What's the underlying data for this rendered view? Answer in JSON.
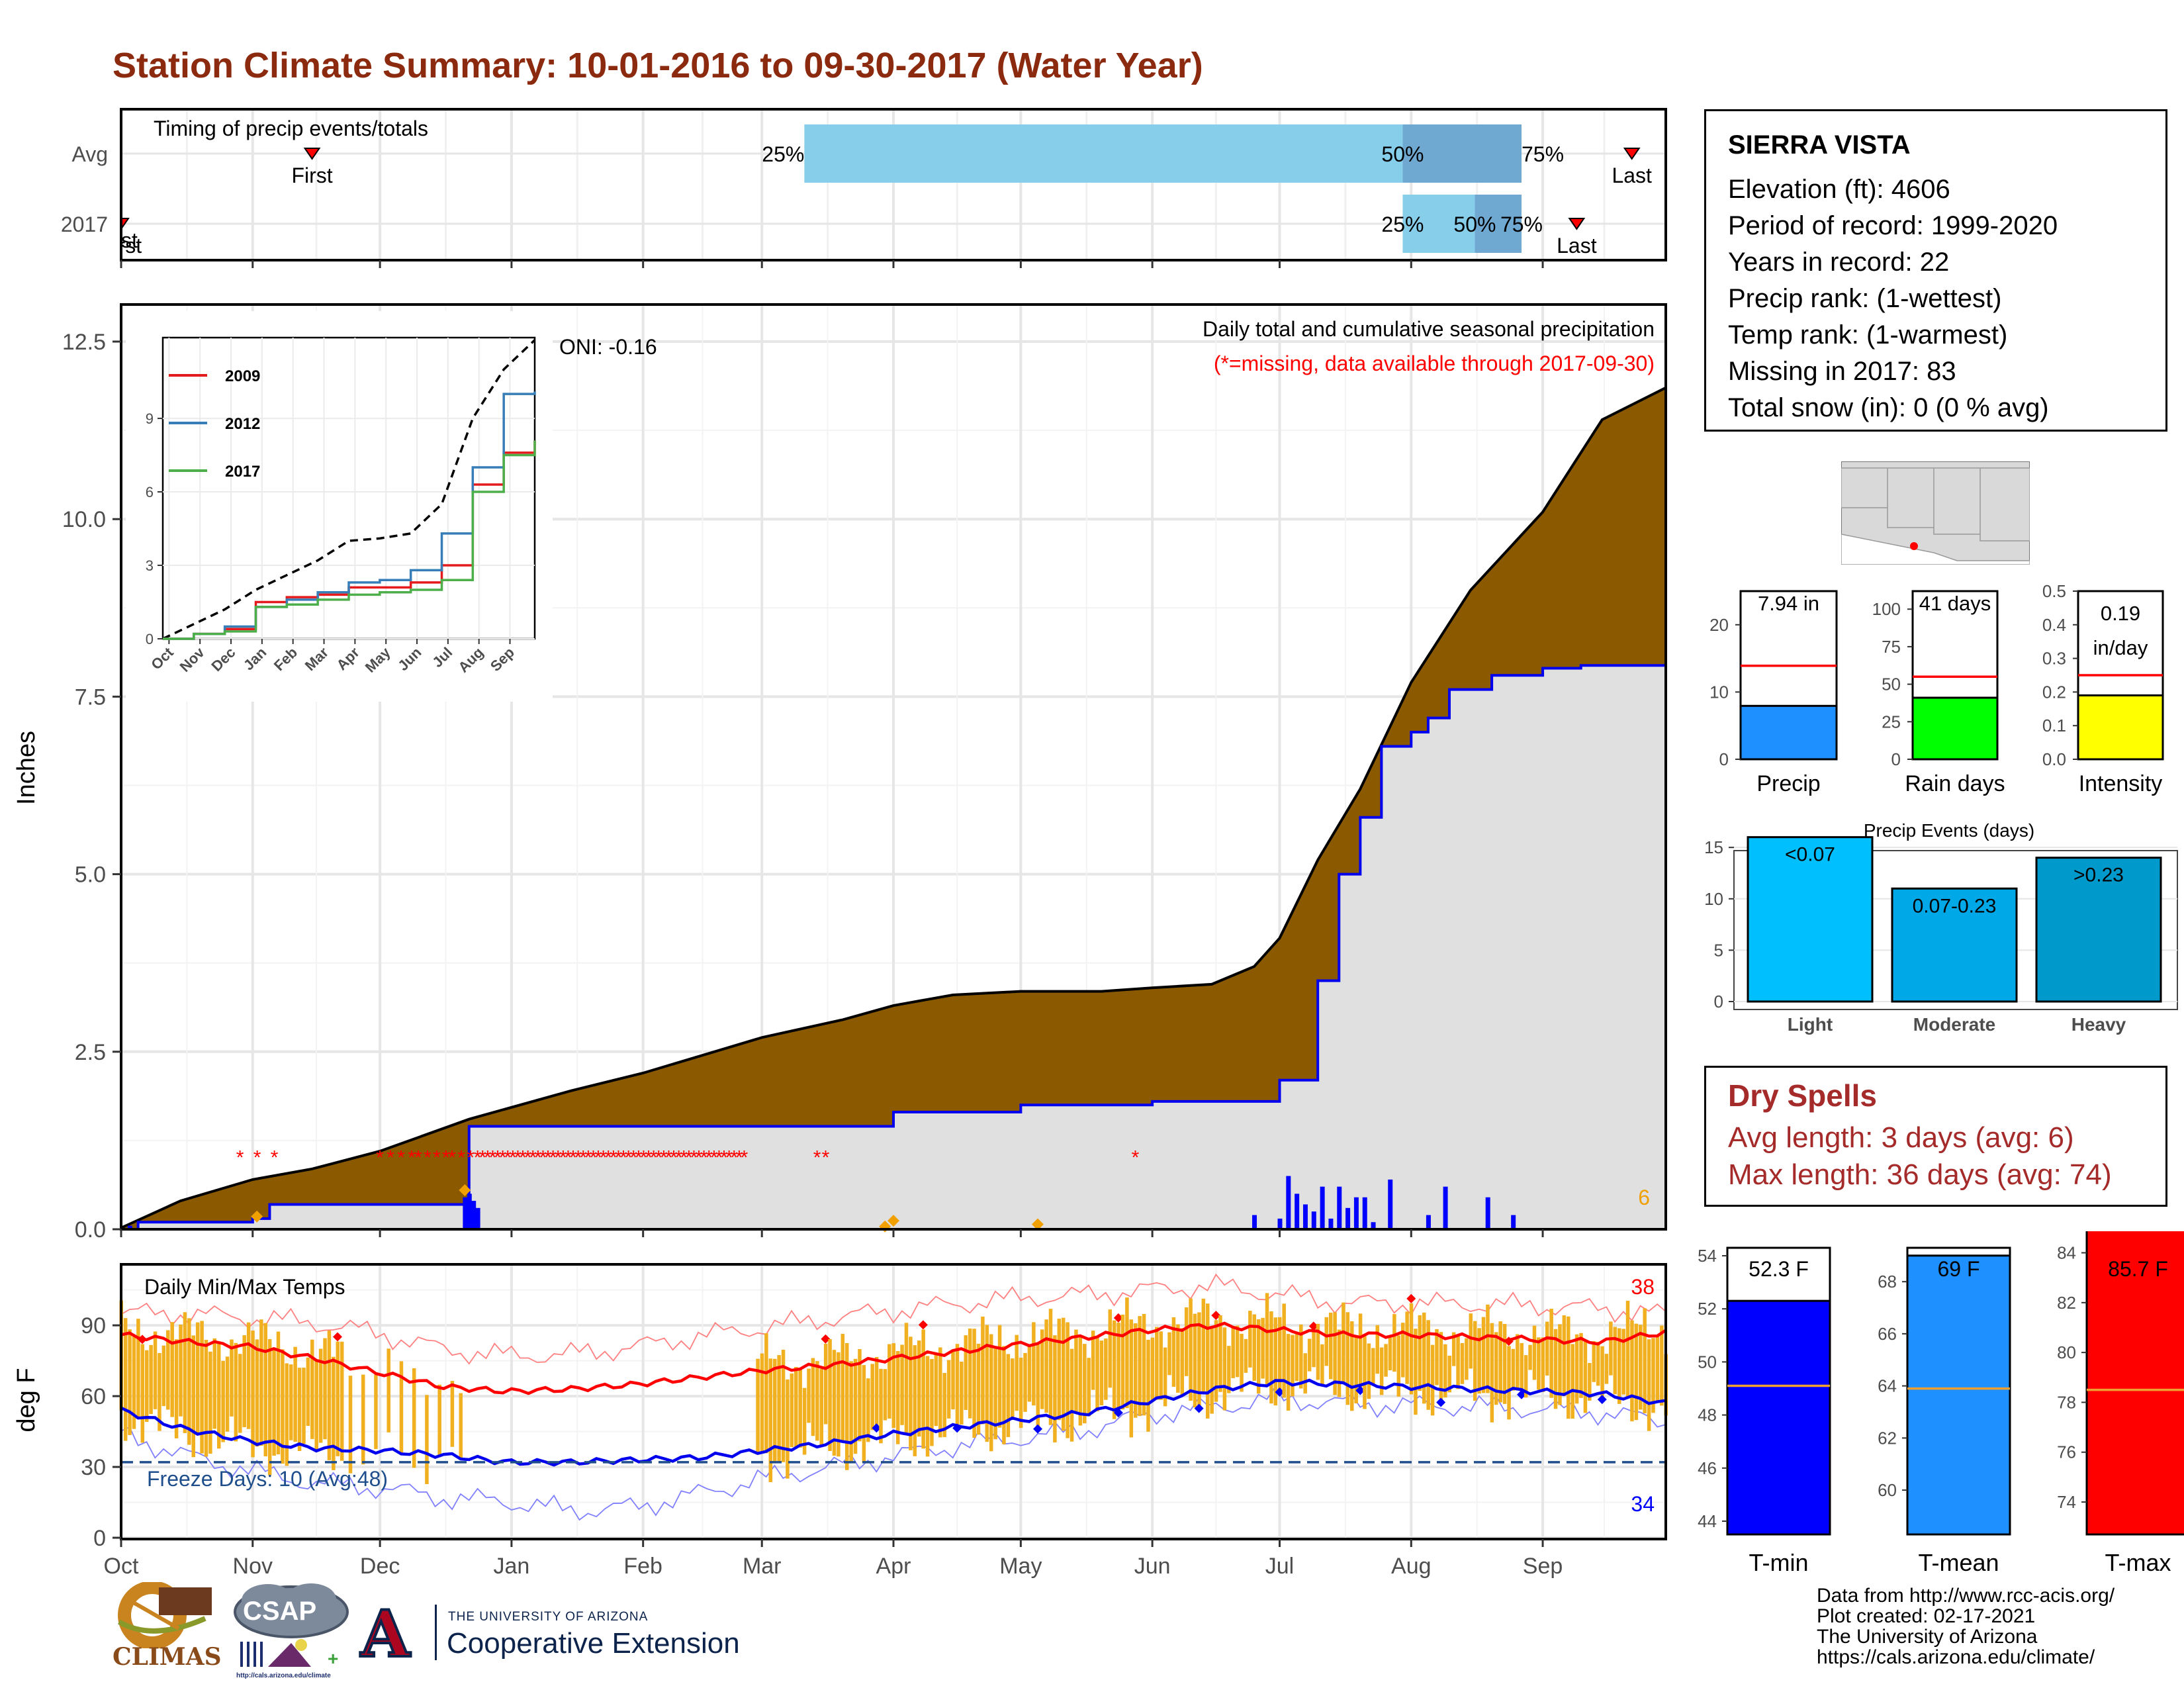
{
  "title": "Station Climate Summary: 10-01-2016 to 09-30-2017 (Water Year)",
  "station": {
    "name": "SIERRA VISTA",
    "lines": [
      "Elevation (ft): 4606",
      "Period of record: 1999-2020",
      "Years in record: 22",
      "Precip rank:  (1-wettest)",
      "Temp rank:  (1-warmest)",
      "Missing in 2017: 83",
      "Total snow (in): 0 (0 % avg)"
    ]
  },
  "timing": {
    "label": "Timing of precip events/totals",
    "rows": [
      {
        "name": "Avg",
        "first_label": "First",
        "first_day": 45,
        "last_label": "Last",
        "last_day": 356,
        "q25_day": 161,
        "q50_day": 302,
        "q75_day": 330,
        "q25_label": "25%",
        "q50_label": "50%",
        "q75_label": "75%"
      },
      {
        "name": "2017",
        "first_label": "First",
        "first_day": 0,
        "last_label": "Last",
        "last_day": 343,
        "q25_day": 302,
        "q50_day": 319,
        "q75_day": 330,
        "q25_label": "25%",
        "q50_label": "50%",
        "q75_label": "75%"
      }
    ]
  },
  "precip_panel": {
    "title": "Daily total and cumulative seasonal precipitation",
    "note": "(*=missing, data available through 2017-09-30)",
    "oni": "ONI: -0.16",
    "ylabel": "Inches",
    "yticks": [
      "0.0",
      "2.5",
      "5.0",
      "7.5",
      "10.0",
      "12.5"
    ],
    "corner_count": "6"
  },
  "inset": {
    "yticks": [
      "0",
      "3",
      "6",
      "9"
    ],
    "xticks": [
      "Oct",
      "Nov",
      "Dec",
      "Jan",
      "Feb",
      "Mar",
      "Apr",
      "May",
      "Jun",
      "Jul",
      "Aug",
      "Sep"
    ],
    "legend": [
      "2009",
      "2012",
      "2017"
    ],
    "colors": {
      "2009": "#e41a1c",
      "2012": "#377eb8",
      "2017": "#4daf4a"
    }
  },
  "temp_panel": {
    "title": "Daily Min/Max Temps",
    "ylabel": "deg F",
    "yticks": [
      "0",
      "30",
      "60",
      "90"
    ],
    "freeze": "Freeze Days: 10 (Avg:48)",
    "count_hot": "38",
    "count_cold": "34"
  },
  "months": [
    "Oct",
    "Nov",
    "Dec",
    "Jan",
    "Feb",
    "Mar",
    "Apr",
    "May",
    "Jun",
    "Jul",
    "Aug",
    "Sep"
  ],
  "precip_gauges": [
    {
      "name": "Precip",
      "value_label": "7.94 in",
      "ticks": [
        "0",
        "10",
        "20"
      ],
      "color": "#1e90ff"
    },
    {
      "name": "Rain days",
      "value_label": "41 days",
      "ticks": [
        "0",
        "25",
        "50",
        "75",
        "100"
      ],
      "color": "#00ff00"
    },
    {
      "name": "Intensity",
      "value_label": "0.19\nin/day",
      "ticks": [
        "0.0",
        "0.1",
        "0.2",
        "0.3",
        "0.4",
        "0.5"
      ],
      "color": "#ffff00"
    }
  ],
  "events": {
    "title": "Precip Events (days)",
    "ticks": [
      "0",
      "5",
      "10",
      "15"
    ],
    "bars": [
      {
        "category": "Light",
        "label": "<0.07",
        "color": "#00bfff"
      },
      {
        "category": "Moderate",
        "label": "0.07-0.23",
        "color": "#00a8e8"
      },
      {
        "category": "Heavy",
        "label": ">0.23",
        "color": "#0099cc"
      }
    ]
  },
  "dry_spells": {
    "title": "Dry Spells",
    "avg": "Avg length: 3 days (avg: 6)",
    "max": "Max length: 36 days (avg: 74)"
  },
  "temp_gauges": [
    {
      "name": "T-min",
      "value_label": "52.3 F",
      "ticks": [
        "44",
        "46",
        "48",
        "50",
        "52",
        "54"
      ],
      "color": "#0000ff"
    },
    {
      "name": "T-mean",
      "value_label": "69 F",
      "ticks": [
        "60",
        "62",
        "64",
        "66",
        "68"
      ],
      "color": "#1e90ff"
    },
    {
      "name": "T-max",
      "value_label": "85.7 F",
      "ticks": [
        "74",
        "76",
        "78",
        "80",
        "82",
        "84"
      ],
      "color": "#ff0000"
    }
  ],
  "logos": {
    "climas": "CLIMAS",
    "csap": "CSAP",
    "csap_url": "http://cals.arizona.edu/climate",
    "ua_small": "THE UNIVERSITY OF ARIZONA",
    "ua_big": "Cooperative Extension",
    "ua_mark": "A"
  },
  "credits": [
    "Data from http://www.rcc-acis.org/",
    "Plot created: 02-17-2021",
    "The University of Arizona",
    "https://cals.arizona.edu/climate/"
  ],
  "chart_data": [
    {
      "type": "area",
      "title": "Daily total and cumulative seasonal precipitation",
      "ylabel": "Inches",
      "ylim": [
        0,
        13
      ],
      "series": [
        {
          "name": "",
          "color": "#8b5a00",
          "x": [
            "2016-10-01",
            "2016-10-15",
            "2016-11-01",
            "2016-11-15",
            "2016-12-01",
            "2016-12-15",
            "2016-12-22",
            "2017-01-15",
            "2017-02-01",
            "2017-02-15",
            "2017-03-01",
            "2017-03-20",
            "2017-04-01",
            "2017-04-15",
            "2017-05-01",
            "2017-05-20",
            "2017-06-01",
            "2017-06-15",
            "2017-06-25",
            "2017-07-01",
            "2017-07-10",
            "2017-07-20",
            "2017-08-01",
            "2017-08-15",
            "2017-09-01",
            "2017-09-15",
            "2017-09-30"
          ],
          "values": [
            0.02,
            0.4,
            0.7,
            0.85,
            1.1,
            1.4,
            1.55,
            1.95,
            2.2,
            2.45,
            2.7,
            2.95,
            3.15,
            3.3,
            3.35,
            3.35,
            3.4,
            3.45,
            3.7,
            4.1,
            5.2,
            6.2,
            7.7,
            9.0,
            10.1,
            11.4,
            11.85
          ]
        },
        {
          "name": "",
          "color": "#0000ff",
          "x": [
            "2016-10-01",
            "2016-10-05",
            "2016-11-01",
            "2016-11-05",
            "2016-12-21",
            "2016-12-22",
            "2017-03-01",
            "2017-04-01",
            "2017-05-01",
            "2017-06-01",
            "2017-07-01",
            "2017-07-10",
            "2017-07-15",
            "2017-07-20",
            "2017-07-25",
            "2017-08-01",
            "2017-08-05",
            "2017-08-10",
            "2017-08-20",
            "2017-09-01",
            "2017-09-10",
            "2017-09-30"
          ],
          "values": [
            0.0,
            0.1,
            0.15,
            0.35,
            0.35,
            1.45,
            1.45,
            1.65,
            1.75,
            1.8,
            2.1,
            3.5,
            5.0,
            5.8,
            6.8,
            7.0,
            7.2,
            7.6,
            7.8,
            7.9,
            7.94,
            7.94
          ]
        }
      ]
    },
    {
      "type": "line",
      "title": "",
      "x": [
        "Oct",
        "Nov",
        "Dec",
        "Jan",
        "Feb",
        "Mar",
        "Apr",
        "May",
        "Jun",
        "Jul",
        "Aug",
        "Sep",
        "Oct"
      ],
      "ylim": [
        0,
        12
      ],
      "series": [
        {
          "name": "",
          "style": "dashed",
          "values": [
            0,
            0.6,
            1.2,
            2.0,
            2.6,
            3.2,
            4.0,
            4.1,
            4.3,
            5.5,
            9.0,
            11.0,
            12.2
          ]
        },
        {
          "name": "2009",
          "values": [
            0,
            0.2,
            0.4,
            1.5,
            1.7,
            1.8,
            2.1,
            2.1,
            2.3,
            3.0,
            6.3,
            7.6,
            8.1
          ]
        },
        {
          "name": "2012",
          "values": [
            0,
            0.2,
            0.5,
            1.3,
            1.6,
            1.9,
            2.3,
            2.4,
            2.8,
            4.3,
            7.0,
            10.0,
            10.1
          ]
        },
        {
          "name": "2017",
          "values": [
            0,
            0.2,
            0.3,
            1.3,
            1.4,
            1.6,
            1.8,
            1.9,
            2.0,
            2.4,
            6.0,
            7.5,
            8.1
          ]
        }
      ]
    },
    {
      "type": "line",
      "title": "Daily Min/Max Temps",
      "ylabel": "deg F",
      "ylim": [
        0,
        115
      ],
      "x": [
        "2016-10-01",
        "2016-10-15",
        "2016-11-01",
        "2016-11-15",
        "2016-12-01",
        "2016-12-15",
        "2017-01-01",
        "2017-01-15",
        "2017-02-01",
        "2017-02-15",
        "2017-03-01",
        "2017-03-15",
        "2017-04-01",
        "2017-04-15",
        "2017-05-01",
        "2017-05-15",
        "2017-06-01",
        "2017-06-15",
        "2017-07-01",
        "2017-07-15",
        "2017-08-01",
        "2017-08-15",
        "2017-09-01",
        "2017-09-15",
        "2017-09-30"
      ],
      "series": [
        {
          "name": "",
          "color": "#ff0000",
          "values": [
            86,
            83,
            81,
            76,
            70,
            64,
            62,
            63,
            65,
            68,
            71,
            73,
            76,
            79,
            82,
            85,
            88,
            90,
            88,
            86,
            86,
            85,
            84,
            83,
            87
          ]
        },
        {
          "name": "",
          "color": "#0000ff",
          "values": [
            54,
            46,
            41,
            38,
            37,
            35,
            32,
            32,
            33,
            34,
            37,
            40,
            44,
            47,
            50,
            53,
            58,
            63,
            66,
            65,
            64,
            63,
            62,
            61,
            57
          ]
        },
        {
          "name": "",
          "color": "#ff9999",
          "values": [
            95,
            94,
            92,
            90,
            86,
            80,
            78,
            79,
            82,
            86,
            89,
            92,
            95,
            98,
            101,
            103,
            106,
            108,
            104,
            100,
            99,
            98,
            97,
            96,
            94
          ]
        },
        {
          "name": "",
          "color": "#9999ff",
          "values": [
            45,
            35,
            28,
            22,
            20,
            16,
            15,
            12,
            14,
            20,
            26,
            30,
            34,
            38,
            41,
            45,
            52,
            56,
            60,
            58,
            57,
            56,
            54,
            52,
            48
          ]
        }
      ]
    },
    {
      "type": "bar",
      "title": "",
      "categories": [
        "Precip",
        "Rain days",
        "Intensity"
      ],
      "values": [
        7.94,
        41,
        0.19
      ],
      "averages": [
        13.9,
        55,
        0.25
      ]
    },
    {
      "type": "bar",
      "title": "Precip Events (days)",
      "categories": [
        "Light",
        "Moderate",
        "Heavy"
      ],
      "values": [
        16,
        11,
        14
      ],
      "ylim": [
        0,
        16
      ]
    },
    {
      "type": "bar",
      "title": "",
      "categories": [
        "T-min",
        "T-mean",
        "T-max"
      ],
      "values": [
        52.3,
        69,
        85.7
      ],
      "averages": [
        49.1,
        63.9,
        78.5
      ]
    }
  ]
}
